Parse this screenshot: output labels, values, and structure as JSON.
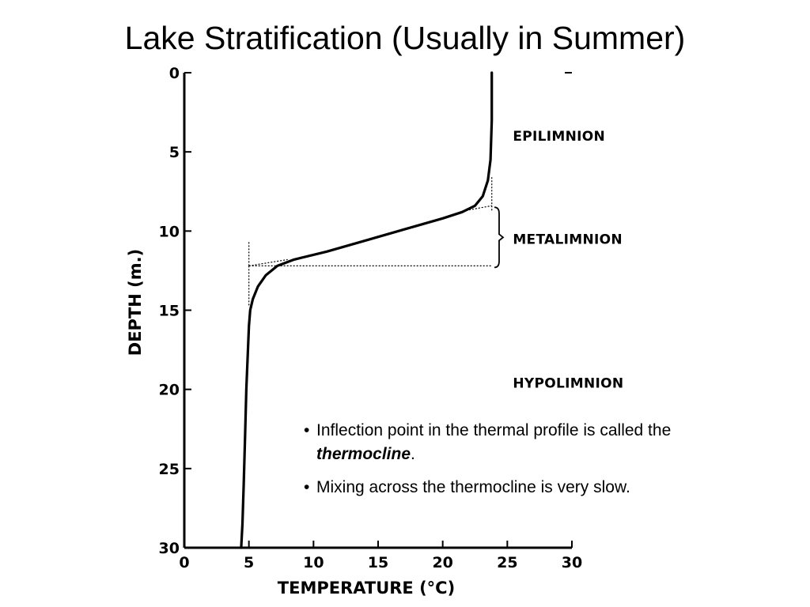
{
  "title": "Lake Stratification (Usually in Summer)",
  "chart_data": {
    "type": "line",
    "xlabel": "TEMPERATURE (°C)",
    "ylabel": "DEPTH (m.)",
    "xlim": [
      0,
      30
    ],
    "ylim": [
      0,
      30
    ],
    "y_inverted": true,
    "x_ticks": [
      "0",
      "5",
      "10",
      "15",
      "20",
      "25",
      "30"
    ],
    "y_ticks": [
      "0",
      "5",
      "10",
      "15",
      "20",
      "25",
      "30"
    ],
    "grid": false,
    "series": [
      {
        "x": [
          23.8,
          23.8,
          23.7,
          23.5,
          23.1,
          22.5,
          21.5,
          20.0,
          17.0,
          14.0,
          11.0,
          8.5,
          7.2,
          6.3,
          5.7,
          5.3,
          5.1,
          5.0,
          4.8,
          4.7,
          4.6,
          4.5,
          4.4
        ],
        "y": [
          0,
          3,
          5.5,
          6.8,
          7.8,
          8.4,
          8.8,
          9.2,
          9.9,
          10.6,
          11.3,
          11.8,
          12.2,
          12.8,
          13.5,
          14.3,
          15.0,
          16.0,
          20.0,
          23.0,
          26.0,
          28.5,
          30.0
        ]
      }
    ],
    "annotations": [
      {
        "text": "EPILIMNION",
        "x": 25,
        "y": 4
      },
      {
        "text": "METALIMNION",
        "x": 25,
        "y": 10.5
      },
      {
        "text": "HYPOLIMNION",
        "x": 25,
        "y": 19.6
      }
    ]
  },
  "notes": [
    {
      "bullet": "•",
      "text_before": "Inflection point in the thermal profile is called the ",
      "emphasis": "thermocline",
      "text_after": "."
    },
    {
      "bullet": "•",
      "text_before": "Mixing across the thermocline is very slow.",
      "emphasis": "",
      "text_after": ""
    }
  ]
}
